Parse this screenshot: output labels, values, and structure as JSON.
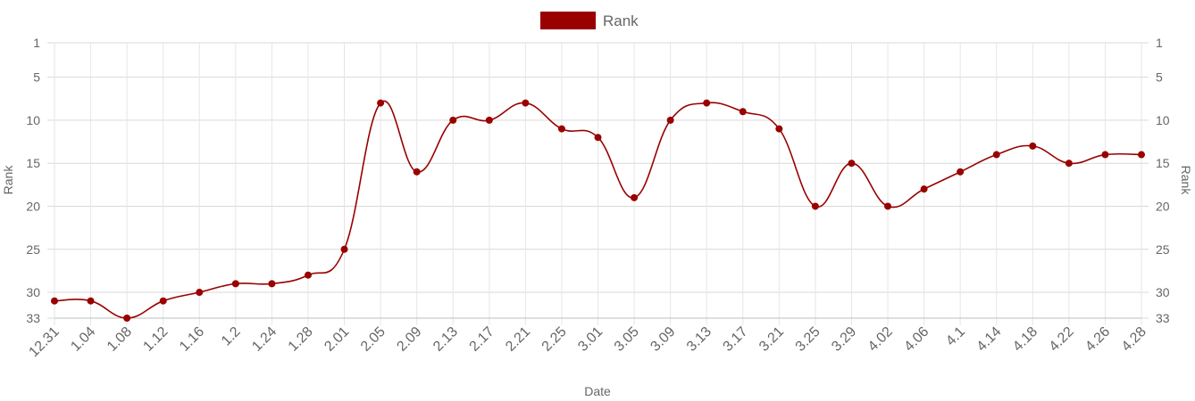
{
  "chart_data": {
    "type": "line",
    "legend": {
      "label": "Rank",
      "position": "top-center"
    },
    "xlabel": "Date",
    "ylabel_left": "Rank",
    "ylabel_right": "Rank",
    "y_reversed": true,
    "ylim": [
      1,
      33
    ],
    "y_ticks": [
      1,
      5,
      10,
      15,
      20,
      25,
      30,
      33
    ],
    "grid": true,
    "categories": [
      "12.31",
      "1.04",
      "1.08",
      "1.12",
      "1.16",
      "1.2",
      "1.24",
      "1.28",
      "2.01",
      "2.05",
      "2.09",
      "2.13",
      "2.17",
      "2.21",
      "2.25",
      "3.01",
      "3.05",
      "3.09",
      "3.13",
      "3.17",
      "3.21",
      "3.25",
      "3.29",
      "4.02",
      "4.06",
      "4.1",
      "4.14",
      "4.18",
      "4.22",
      "4.26",
      "4.28"
    ],
    "series": [
      {
        "name": "Rank",
        "color": "#990000",
        "values": [
          31,
          31,
          33,
          31,
          30,
          29,
          29,
          28,
          25,
          8,
          16,
          10,
          10,
          8,
          11,
          12,
          19,
          10,
          8,
          9,
          11,
          20,
          15,
          20,
          18,
          16,
          14,
          13,
          15,
          14,
          14
        ]
      }
    ]
  }
}
